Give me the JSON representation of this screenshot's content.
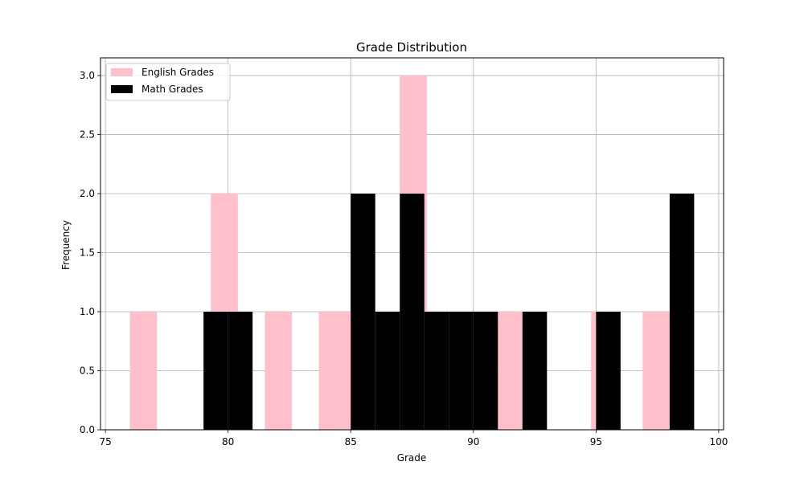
{
  "chart_data": {
    "type": "bar",
    "title": "Grade Distribution",
    "xlabel": "Grade",
    "ylabel": "Frequency",
    "xlim": [
      74.8,
      100.2
    ],
    "ylim": [
      0,
      3.15
    ],
    "xticks": [
      75,
      80,
      85,
      90,
      95,
      100
    ],
    "xtick_labels": [
      "75",
      "80",
      "85",
      "90",
      "95",
      "100"
    ],
    "yticks": [
      0.0,
      0.5,
      1.0,
      1.5,
      2.0,
      2.5,
      3.0
    ],
    "ytick_labels": [
      "0.0",
      "0.5",
      "1.0",
      "1.5",
      "2.0",
      "2.5",
      "3.0"
    ],
    "grid": true,
    "legend_position": "top-left",
    "series": [
      {
        "name": "English Grades",
        "color": "#ffc0cb",
        "bins": [
          {
            "x0": 76.0,
            "x1": 77.1,
            "count": 1
          },
          {
            "x0": 79.3,
            "x1": 80.4,
            "count": 2
          },
          {
            "x0": 81.5,
            "x1": 82.6,
            "count": 1
          },
          {
            "x0": 83.7,
            "x1": 84.8,
            "count": 1
          },
          {
            "x0": 84.8,
            "x1": 85.9,
            "count": 1
          },
          {
            "x0": 85.9,
            "x1": 87.0,
            "count": 1
          },
          {
            "x0": 87.0,
            "x1": 88.1,
            "count": 3
          },
          {
            "x0": 88.1,
            "x1": 89.2,
            "count": 1
          },
          {
            "x0": 89.2,
            "x1": 90.3,
            "count": 1
          },
          {
            "x0": 91.0,
            "x1": 92.0,
            "count": 1
          },
          {
            "x0": 94.8,
            "x1": 95.9,
            "count": 1
          },
          {
            "x0": 96.9,
            "x1": 98.0,
            "count": 1
          }
        ]
      },
      {
        "name": "Math Grades",
        "color": "#000000",
        "bins": [
          {
            "x0": 79.0,
            "x1": 80.0,
            "count": 1
          },
          {
            "x0": 80.0,
            "x1": 81.0,
            "count": 1
          },
          {
            "x0": 85.0,
            "x1": 86.0,
            "count": 2
          },
          {
            "x0": 86.0,
            "x1": 87.0,
            "count": 1
          },
          {
            "x0": 87.0,
            "x1": 88.0,
            "count": 2
          },
          {
            "x0": 88.0,
            "x1": 89.0,
            "count": 1
          },
          {
            "x0": 89.0,
            "x1": 90.0,
            "count": 1
          },
          {
            "x0": 90.0,
            "x1": 91.0,
            "count": 1
          },
          {
            "x0": 92.0,
            "x1": 93.0,
            "count": 1
          },
          {
            "x0": 95.0,
            "x1": 96.0,
            "count": 1
          },
          {
            "x0": 98.0,
            "x1": 99.0,
            "count": 2
          }
        ]
      }
    ]
  }
}
